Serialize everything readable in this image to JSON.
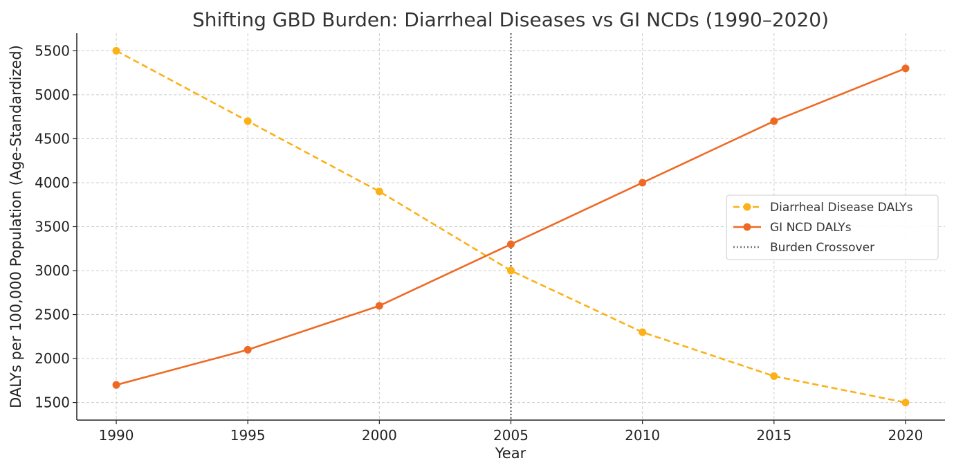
{
  "chart_data": {
    "type": "line",
    "title": "Shifting GBD Burden: Diarrheal Diseases vs GI NCDs (1990–2020)",
    "xlabel": "Year",
    "ylabel": "DALYs per 100,000 Population (Age-Standardized)",
    "x": [
      1990,
      1995,
      2000,
      2005,
      2010,
      2015,
      2020
    ],
    "xlim": [
      1988.5,
      2021.5
    ],
    "ylim": [
      1300,
      5700
    ],
    "xticks": [
      "1990",
      "1995",
      "2000",
      "2005",
      "2010",
      "2015",
      "2020"
    ],
    "yticks": [
      "1500",
      "2000",
      "2500",
      "3000",
      "3500",
      "4000",
      "4500",
      "5000",
      "5500"
    ],
    "grid": true,
    "legend_position": "center-right",
    "series": [
      {
        "name": "Diarrheal Disease DALYs",
        "values": [
          5500,
          4700,
          3900,
          3000,
          2300,
          1800,
          1500
        ],
        "color": "#FBB117",
        "line_style": "dashed",
        "marker": "circle"
      },
      {
        "name": "GI NCD DALYs",
        "values": [
          1700,
          2100,
          2600,
          3300,
          4000,
          4700,
          5300
        ],
        "color": "#EE6A24",
        "line_style": "solid",
        "marker": "circle"
      }
    ],
    "vlines": [
      {
        "name": "Burden Crossover",
        "x": 2005,
        "color": "#777777",
        "line_style": "dotted"
      }
    ]
  }
}
